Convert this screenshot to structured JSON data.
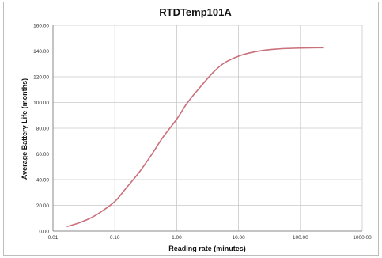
{
  "chart_data": {
    "type": "line",
    "title": "RTDTemp101A",
    "xlabel": "Reading  rate (minutes)",
    "ylabel": "Average Battery Life (months)",
    "x_scale": "log",
    "xlim": [
      0.01,
      1000
    ],
    "ylim": [
      0,
      160
    ],
    "x_ticks": [
      0.01,
      0.1,
      1,
      10,
      100,
      1000
    ],
    "x_tick_labels": [
      "0.01",
      "0.10",
      "1.00",
      "10.00",
      "100.00",
      "1000.00"
    ],
    "y_ticks": [
      0,
      20,
      40,
      60,
      80,
      100,
      120,
      140,
      160
    ],
    "y_tick_labels": [
      "0.00",
      "20.00",
      "40.00",
      "60.00",
      "80.00",
      "100.00",
      "120.00",
      "140.00",
      "160.00"
    ],
    "grid": true,
    "legend": "none",
    "series": [
      {
        "color": "#c9707b",
        "x": [
          0.0167,
          0.025,
          0.04,
          0.06,
          0.1,
          0.15,
          0.25,
          0.4,
          0.6,
          1,
          1.5,
          2.5,
          4,
          6,
          10,
          15,
          25,
          40,
          60,
          100,
          150,
          240
        ],
        "y": [
          3.5,
          6,
          10,
          15,
          23,
          33,
          46,
          60,
          73,
          87,
          100,
          113,
          124,
          131,
          136,
          138.5,
          140.5,
          141.5,
          142,
          142.3,
          142.5,
          142.6
        ]
      }
    ]
  }
}
